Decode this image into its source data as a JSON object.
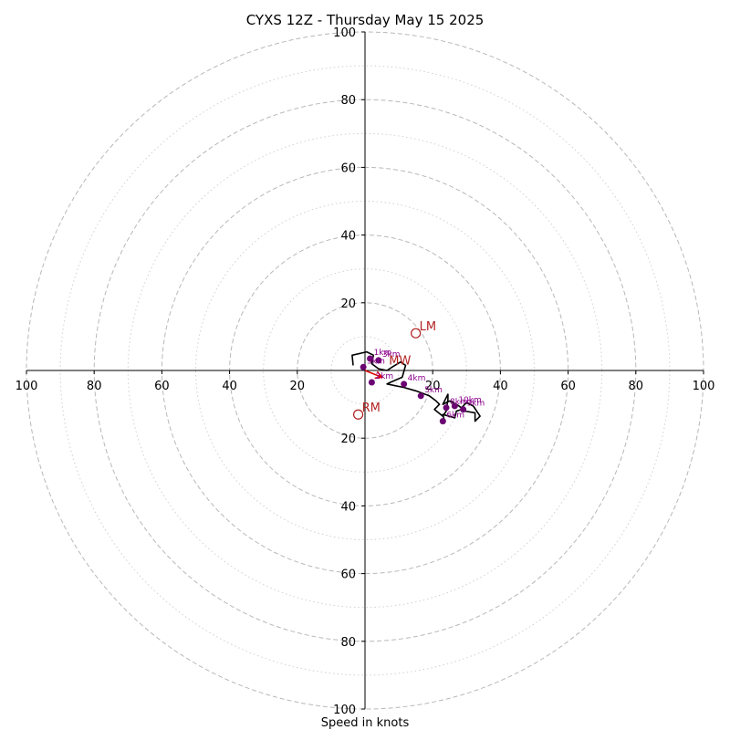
{
  "chart_data": {
    "type": "hodograph",
    "title": "CYXS 12Z - Thursday May 15 2025",
    "xlabel": "Speed in knots",
    "ylabel": "",
    "range": [
      -100,
      100
    ],
    "rings_major": [
      20,
      40,
      60,
      80,
      100
    ],
    "rings_minor": [
      10,
      30,
      50,
      70,
      90
    ],
    "tick_labels": {
      "x_left": [
        "100",
        "80",
        "60",
        "40",
        "20"
      ],
      "x_right": [
        "20",
        "40",
        "60",
        "80",
        "100"
      ],
      "y_top": [
        "100",
        "80",
        "60",
        "40",
        "20"
      ],
      "y_bottom": [
        "20",
        "40",
        "60",
        "80",
        "100"
      ]
    },
    "grid": true,
    "trace": [
      [
        -3.5,
        1.5
      ],
      [
        -3.8,
        4.5
      ],
      [
        0.5,
        5.5
      ],
      [
        2.5,
        4.5
      ],
      [
        2,
        2
      ],
      [
        4,
        0.5
      ],
      [
        6.5,
        0
      ],
      [
        8,
        1
      ],
      [
        10.5,
        2.5
      ],
      [
        12,
        1.5
      ],
      [
        11,
        -2
      ],
      [
        7.5,
        -3.5
      ],
      [
        6.5,
        -4
      ],
      [
        11.5,
        -5
      ],
      [
        15,
        -6
      ],
      [
        19,
        -7.5
      ],
      [
        21,
        -9
      ],
      [
        22,
        -10
      ],
      [
        20.5,
        -11.5
      ],
      [
        23,
        -13.5
      ],
      [
        24,
        -12
      ],
      [
        24.5,
        -8.5
      ],
      [
        24.5,
        -7
      ],
      [
        23,
        -10
      ],
      [
        25,
        -9
      ],
      [
        27,
        -10
      ],
      [
        28.5,
        -11
      ],
      [
        30,
        -9.5
      ],
      [
        32,
        -10.5
      ],
      [
        34,
        -13.5
      ],
      [
        32.5,
        -15
      ],
      [
        32.5,
        -12.5
      ],
      [
        29.5,
        -12
      ],
      [
        28.5,
        -11.5
      ],
      [
        27,
        -12
      ],
      [
        26.5,
        -14
      ],
      [
        23,
        -13
      ],
      [
        23.5,
        -15
      ]
    ],
    "height_markers": [
      {
        "label": "1km",
        "u": 1.5,
        "v": 3.5
      },
      {
        "label": "3km",
        "u": 4,
        "v": 3
      },
      {
        "label": "2km",
        "u": 2,
        "v": -3.5
      },
      {
        "label": "5km",
        "u": -0.5,
        "v": 1
      },
      {
        "label": "4km",
        "u": 11.5,
        "v": -4
      },
      {
        "label": "5km",
        "u": 16.5,
        "v": -7.5
      },
      {
        "label": "6km",
        "u": 23,
        "v": -15
      },
      {
        "label": "8km",
        "u": 24,
        "v": -11
      },
      {
        "label": "10km",
        "u": 26.5,
        "v": -10.5
      },
      {
        "label": "9km",
        "u": 29,
        "v": -11.5
      }
    ],
    "storm_motion": [
      {
        "label": "LM",
        "u": 15,
        "v": 11
      },
      {
        "label": "RM",
        "u": -2,
        "v": -13
      },
      {
        "label": "MW",
        "u": 6,
        "v": 1
      }
    ],
    "mean_wind_vector": {
      "u": 5,
      "v": -2
    },
    "colors": {
      "trace": "#000000",
      "markers": "#6a0572",
      "marker_text": "#8b008b",
      "storm_motion": "#b22222",
      "mean_wind_arrow": "#e00000",
      "grid": "#b8b8b8",
      "axes": "#000000"
    }
  }
}
